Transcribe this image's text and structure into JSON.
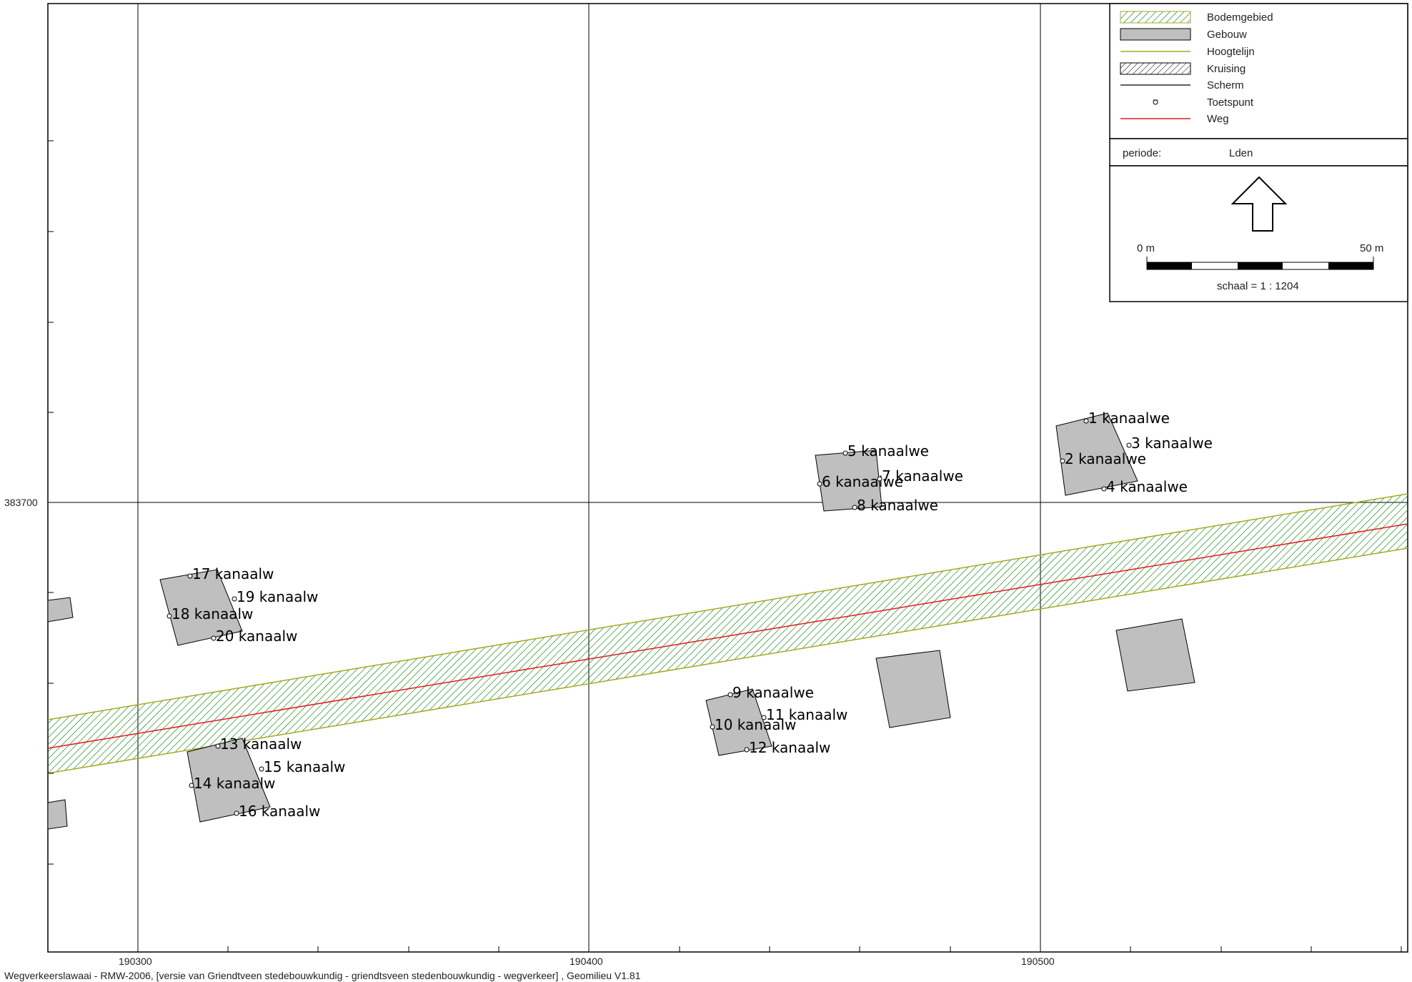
{
  "colors": {
    "road": "#e21b1b",
    "building_fill": "#bfbfbf",
    "hatch_green": "#1a8a1a",
    "hoogtelijn": "#a8a820",
    "frame": "#000000"
  },
  "axes": {
    "x_ticks": [
      {
        "value": 190300,
        "label": "190300"
      },
      {
        "value": 190400,
        "label": "190400"
      },
      {
        "value": 190500,
        "label": "190500"
      }
    ],
    "y_ticks": [
      {
        "value": 383700,
        "label": "383700"
      }
    ]
  },
  "legend": {
    "items": [
      {
        "key": "bodemgebied",
        "label": "Bodemgebied",
        "icon": "green-hatch-swatch"
      },
      {
        "key": "gebouw",
        "label": "Gebouw",
        "icon": "grey-rect-swatch"
      },
      {
        "key": "hoogtelijn",
        "label": "Hoogtelijn",
        "icon": "olive-line"
      },
      {
        "key": "kruising",
        "label": "Kruising",
        "icon": "black-hatch-swatch"
      },
      {
        "key": "scherm",
        "label": "Scherm",
        "icon": "black-line"
      },
      {
        "key": "toetspunt",
        "label": "Toetspunt",
        "icon": "point-marker"
      },
      {
        "key": "weg",
        "label": "Weg",
        "icon": "red-line"
      }
    ],
    "periode_label": "periode:",
    "periode_value": "Lden",
    "north_arrow_icon": "north-arrow-icon",
    "scale_start": "0 m",
    "scale_end": "50 m",
    "scale_text": "schaal = 1 : 1204"
  },
  "points": [
    {
      "id": "1",
      "label": "1 kanaalwe"
    },
    {
      "id": "2",
      "label": "2 kanaalwe"
    },
    {
      "id": "3",
      "label": "3 kanaalwe"
    },
    {
      "id": "4",
      "label": "4 kanaalwe"
    },
    {
      "id": "5",
      "label": "5 kanaalwe"
    },
    {
      "id": "6",
      "label": "6 kanaalwe"
    },
    {
      "id": "7",
      "label": "7 kanaalwe"
    },
    {
      "id": "8",
      "label": "8 kanaalwe"
    },
    {
      "id": "9",
      "label": "9 kanaalwe"
    },
    {
      "id": "10",
      "label": "10 kanaalw"
    },
    {
      "id": "11",
      "label": "11 kanaalw"
    },
    {
      "id": "12",
      "label": "12 kanaalw"
    },
    {
      "id": "13",
      "label": "13 kanaalw"
    },
    {
      "id": "14",
      "label": "14 kanaalw"
    },
    {
      "id": "15",
      "label": "15 kanaalw"
    },
    {
      "id": "16",
      "label": "16 kanaalw"
    },
    {
      "id": "17",
      "label": "17 kanaalw"
    },
    {
      "id": "18",
      "label": "18 kanaalw"
    },
    {
      "id": "19",
      "label": "19 kanaalw"
    },
    {
      "id": "20",
      "label": "20 kanaalw"
    }
  ],
  "footer": "Wegverkeerslawaai - RMW-2006, [versie van Griendtveen stedebouwkundig - griendtsveen stedenbouwkundig - wegverkeer] , Geomilieu V1.81"
}
